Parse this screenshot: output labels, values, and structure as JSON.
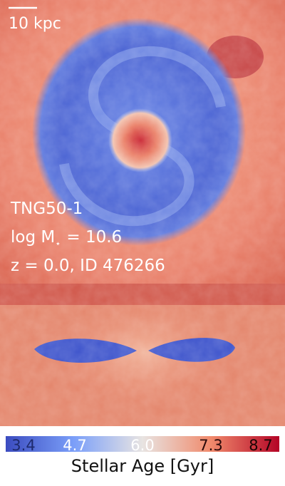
{
  "scale_bar": {
    "label": "10 kpc"
  },
  "info": {
    "simulation": "TNG50-1",
    "mass": {
      "prefix": "log M",
      "subscript": "⋆",
      "suffix": "= 10.6"
    },
    "id_label": "z = 0.0, ID 476266"
  },
  "colorbar": {
    "ticks": [
      "3.4",
      "4.7",
      "6.0",
      "7.3",
      "8.7"
    ],
    "label": "Stellar Age [Gyr]"
  }
}
